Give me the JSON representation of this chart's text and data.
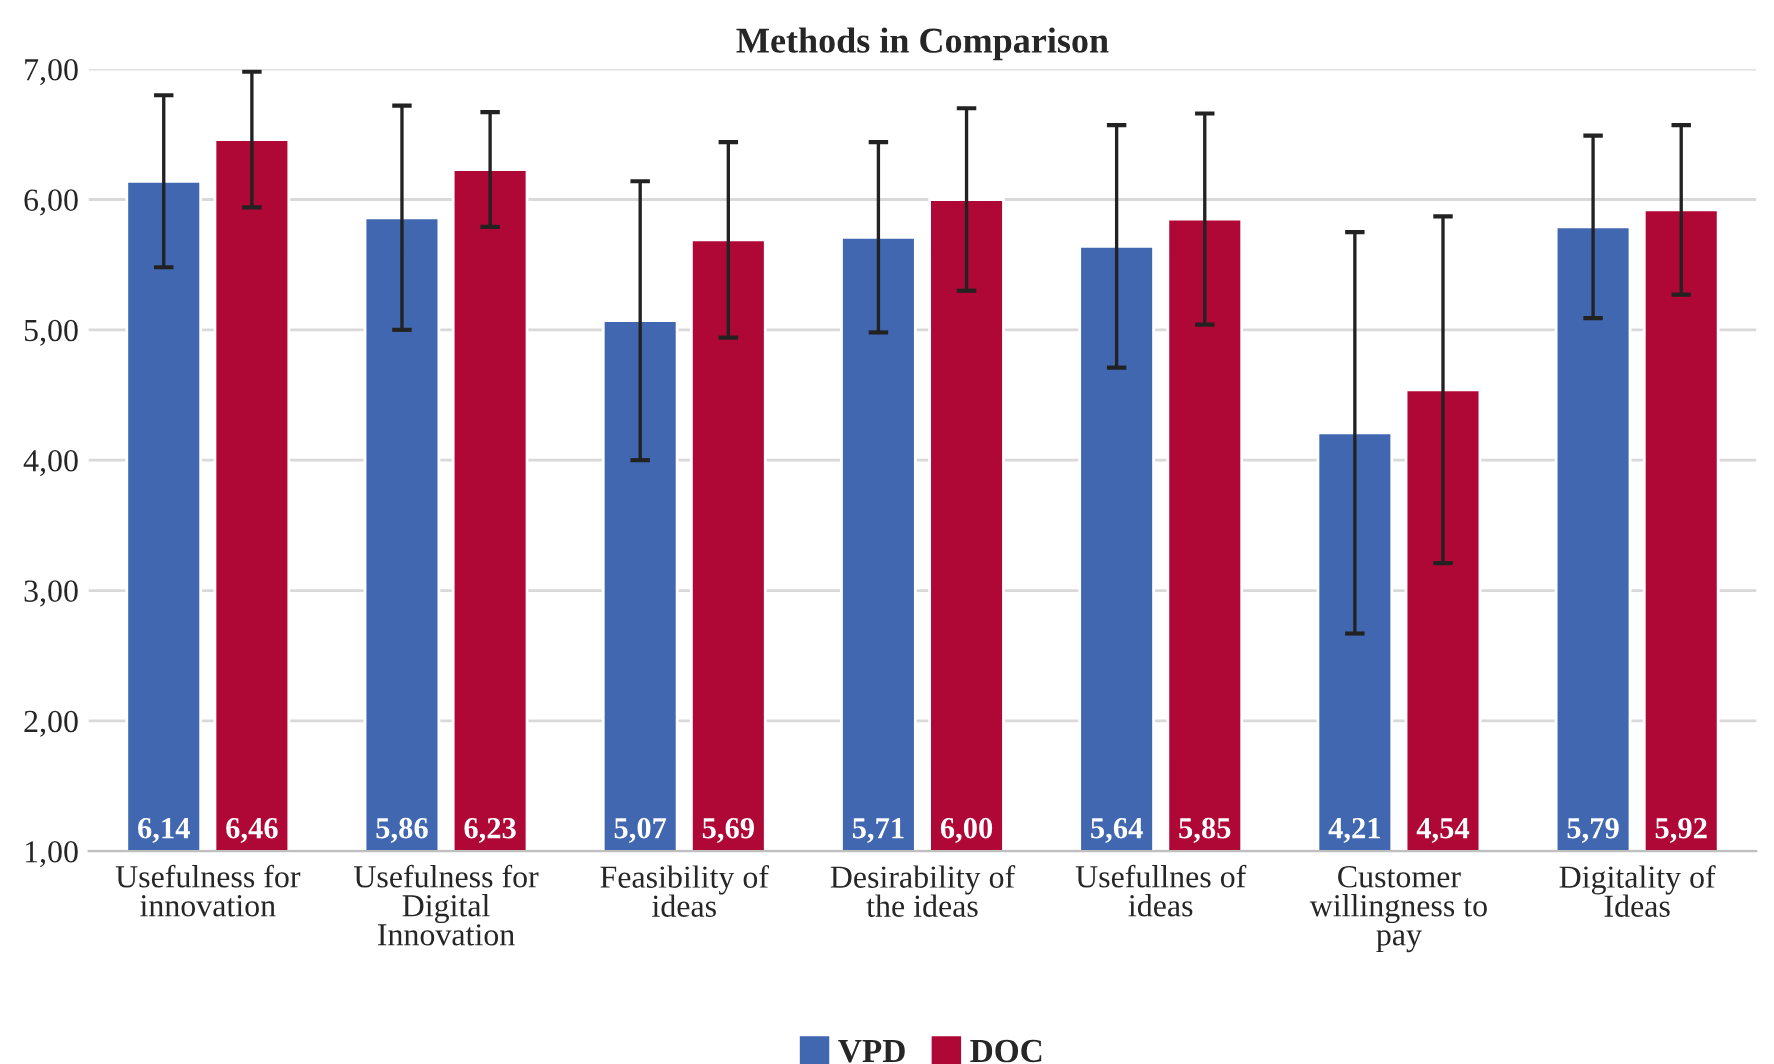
{
  "chart_data": {
    "type": "bar",
    "title": "Methods in Comparison",
    "categories": [
      "Usefulness for innovation",
      "Usefulness for Digital Innovation",
      "Feasibility of ideas",
      "Desirability of the ideas",
      "Usefullnes of ideas",
      "Customer willingness to pay",
      "Digitality of Ideas"
    ],
    "series": [
      {
        "name": "VPD",
        "color": "#4167b1",
        "values": [
          6.14,
          5.86,
          5.07,
          5.71,
          5.64,
          4.21,
          5.79
        ],
        "errors": [
          0.66,
          0.86,
          1.07,
          0.73,
          0.93,
          1.54,
          0.7
        ],
        "value_labels": [
          "6,14",
          "5,86",
          "5,07",
          "5,71",
          "5,64",
          "4,21",
          "5,79"
        ]
      },
      {
        "name": "DOC",
        "color": "#b00836",
        "values": [
          6.46,
          6.23,
          5.69,
          6.0,
          5.85,
          4.54,
          5.92
        ],
        "errors": [
          0.52,
          0.44,
          0.75,
          0.7,
          0.81,
          1.33,
          0.65
        ],
        "value_labels": [
          "6,46",
          "6,23",
          "5,69",
          "6,00",
          "5,85",
          "4,54",
          "5,92"
        ]
      }
    ],
    "ylim": [
      1,
      7
    ],
    "yticks": [
      {
        "value": 1,
        "label": "1,00"
      },
      {
        "value": 2,
        "label": "2,00"
      },
      {
        "value": 3,
        "label": "3,00"
      },
      {
        "value": 4,
        "label": "4,00"
      },
      {
        "value": 5,
        "label": "5,00"
      },
      {
        "value": 6,
        "label": "6,00"
      },
      {
        "value": 7,
        "label": "7,00"
      }
    ],
    "grid": "y",
    "legend": "bottom"
  }
}
